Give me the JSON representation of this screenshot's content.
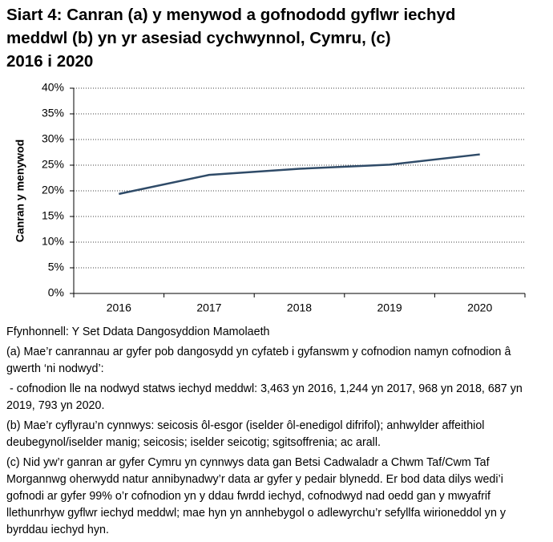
{
  "chart_data": {
    "type": "line",
    "title": [
      "Siart 4: Canran (a) y menywod a gofnododd gyflwr iechyd",
      "meddwl (b) yn yr asesiad cychwynnol, Cymru, (c)",
      "2016 i 2020"
    ],
    "y_label": "Canran y menywod",
    "categories": [
      "2016",
      "2017",
      "2018",
      "2019",
      "2020"
    ],
    "values": [
      19.4,
      23.1,
      24.3,
      25.1,
      27.1
    ],
    "color": "#2f4b68",
    "ylim": [
      0,
      40
    ],
    "yticks": [
      {
        "value": 0,
        "label": "0%"
      },
      {
        "value": 5,
        "label": "5%"
      },
      {
        "value": 10,
        "label": "10%"
      },
      {
        "value": 15,
        "label": "15%"
      },
      {
        "value": 20,
        "label": "20%"
      },
      {
        "value": 25,
        "label": "25%"
      },
      {
        "value": 30,
        "label": "30%"
      },
      {
        "value": 35,
        "label": "35%"
      },
      {
        "value": 40,
        "label": "40%"
      }
    ],
    "grid": true,
    "notes": [
      "Ffynhonnell: Y Set Ddata Dangosyddion Mamolaeth",
      "(a) Mae’r canrannau ar gyfer pob dangosydd yn cyfateb i gyfanswm y cofnodion namyn cofnodion â gwerth ‘ni nodwyd’:",
      " - cofnodion lle na nodwyd statws iechyd meddwl: 3,463 yn 2016, 1,244 yn 2017, 968 yn 2018, 687 yn 2019, 793 yn 2020.",
      "(b) Mae’r cyflyrau’n cynnwys: seicosis ôl-esgor (iselder ôl-enedigol difrifol); anhwylder affeithiol deubegynol/iselder manig; seicosis; iselder seicotig; sgitsoffrenia; ac arall.",
      "(c) Nid yw’r ganran ar gyfer Cymru yn cynnwys data gan Betsi Cadwaladr a Chwm Taf/Cwm Taf Morgannwg oherwydd natur annibynadwy’r data ar gyfer y pedair blynedd. Er bod data dilys wedi’i gofnodi ar gyfer 99% o’r cofnodion yn y ddau fwrdd iechyd, cofnodwyd nad oedd gan y mwyafrif llethunrhyw gyflwr iechyd meddwl; mae hyn yn annhebygol o adlewyrchu’r sefyllfa wirioneddol yn y byrddau iechyd hyn."
    ]
  }
}
